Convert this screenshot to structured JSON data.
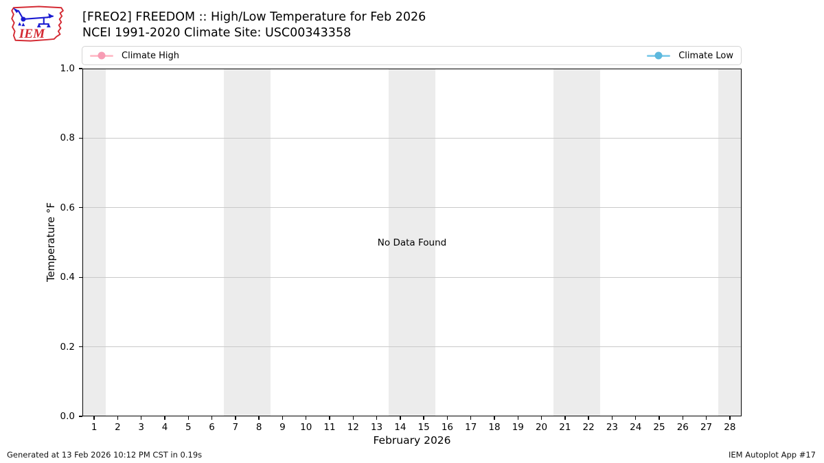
{
  "header": {
    "title_line1": "[FREO2] FREEDOM :: High/Low Temperature for Feb 2026",
    "title_line2": "NCEI 1991-2020 Climate Site: USC00343358"
  },
  "logo": {
    "text": "IEM",
    "outline_color": "#d42a33",
    "instrument_color": "#1b1bd1"
  },
  "chart_data": {
    "type": "line",
    "title": "[FREO2] FREEDOM :: High/Low Temperature for Feb 2026",
    "subtitle": "NCEI 1991-2020 Climate Site: USC00343358",
    "xlabel": "February 2026",
    "ylabel": "Temperature °F",
    "xlim": [
      0.5,
      28.5
    ],
    "ylim": [
      0.0,
      1.0
    ],
    "x_ticks": [
      1,
      2,
      3,
      4,
      5,
      6,
      7,
      8,
      9,
      10,
      11,
      12,
      13,
      14,
      15,
      16,
      17,
      18,
      19,
      20,
      21,
      22,
      23,
      24,
      25,
      26,
      27,
      28
    ],
    "y_ticks": [
      0.0,
      0.2,
      0.4,
      0.6,
      0.8,
      1.0
    ],
    "grid": "horizontal",
    "legend_position": "top, expanded full width",
    "weekend_bands": [
      [
        0.5,
        1.5
      ],
      [
        6.5,
        8.5
      ],
      [
        13.5,
        15.5
      ],
      [
        20.5,
        22.5
      ],
      [
        27.5,
        28.5
      ]
    ],
    "band_color": "#ececec",
    "annotation": "No Data Found",
    "series": [
      {
        "name": "Climate High",
        "color": "#ffc0cb",
        "marker_color": "#f79cb4",
        "x": [],
        "values": []
      },
      {
        "name": "Climate Low",
        "color": "#87ceeb",
        "marker_color": "#5db8dd",
        "x": [],
        "values": []
      }
    ]
  },
  "footer": {
    "left": "Generated at 13 Feb 2026 10:12 PM CST in 0.19s",
    "right": "IEM Autoplot App #17"
  }
}
